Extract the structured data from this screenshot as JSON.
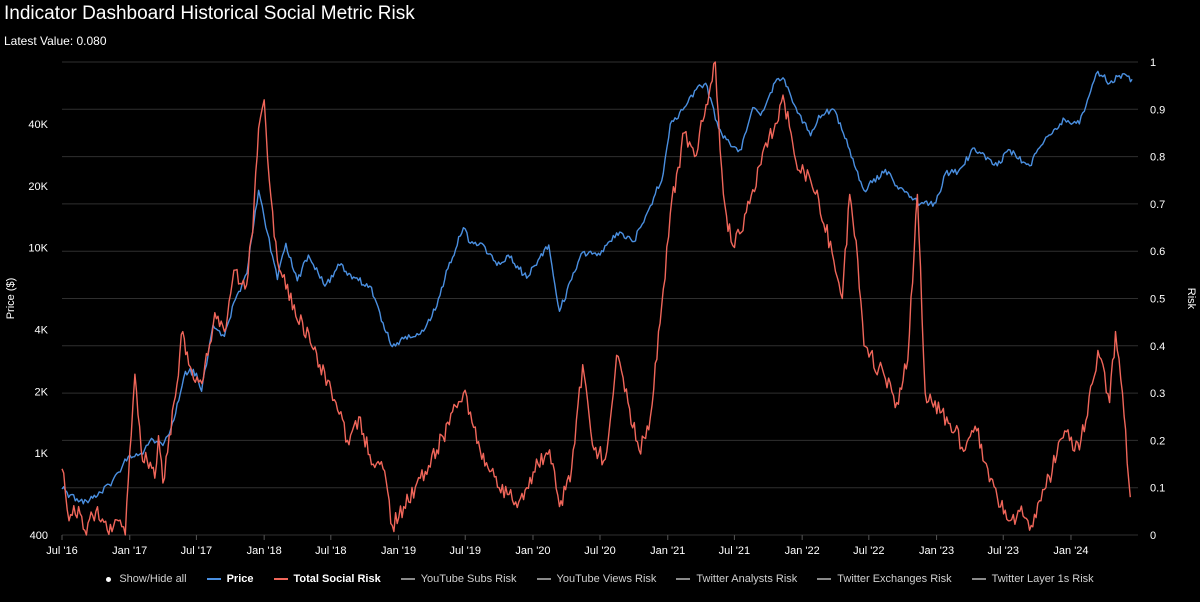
{
  "header": {
    "title": "Indicator Dashboard Historical Social Metric Risk",
    "subtitle": "Latest Value: 0.080"
  },
  "legend": {
    "show_hide_label": "Show/Hide all",
    "items": [
      {
        "label": "Price",
        "color": "#4a8fe0",
        "active": true
      },
      {
        "label": "Total Social Risk",
        "color": "#f0665a",
        "active": true
      },
      {
        "label": "YouTube Subs Risk",
        "color": "#8a8a8a",
        "active": false
      },
      {
        "label": "YouTube Views Risk",
        "color": "#8a8a8a",
        "active": false
      },
      {
        "label": "Twitter Analysts Risk",
        "color": "#8a8a8a",
        "active": false
      },
      {
        "label": "Twitter Exchanges Risk",
        "color": "#8a8a8a",
        "active": false
      },
      {
        "label": "Twitter Layer 1s Risk",
        "color": "#8a8a8a",
        "active": false
      }
    ]
  },
  "chart_data": {
    "type": "line",
    "title": "Indicator Dashboard Historical Social Metric Risk",
    "subtitle": "Latest Value: 0.080",
    "x_ticks": [
      "Jul '16",
      "Jan '17",
      "Jul '17",
      "Jan '18",
      "Jul '18",
      "Jan '19",
      "Jul '19",
      "Jan '20",
      "Jul '20",
      "Jan '21",
      "Jul '21",
      "Jan '22",
      "Jul '22",
      "Jan '23",
      "Jul '23",
      "Jan '24"
    ],
    "x_range": [
      "2016-07",
      "2024-07"
    ],
    "y_left": {
      "label": "Price ($)",
      "scale": "log",
      "ticks": [
        400,
        1000,
        2000,
        4000,
        10000,
        20000,
        40000
      ],
      "tick_labels": [
        "400",
        "1K",
        "2K",
        "4K",
        "10K",
        "20K",
        "40K"
      ],
      "range": [
        400,
        80000
      ]
    },
    "y_right": {
      "label": "Risk",
      "scale": "linear",
      "ticks": [
        0,
        0.1,
        0.2,
        0.3,
        0.4,
        0.5,
        0.6,
        0.7,
        0.8,
        0.9,
        1
      ],
      "tick_labels": [
        "0",
        "0.1",
        "0.2",
        "0.3",
        "0.4",
        "0.5",
        "0.6",
        "0.7",
        "0.8",
        "0.9",
        "1"
      ],
      "range": [
        0,
        1
      ]
    },
    "grid": true,
    "legend_position": "bottom",
    "series": [
      {
        "name": "Price",
        "axis": "left",
        "color": "#4a8fe0",
        "points": [
          [
            "2016-07-01",
            670
          ],
          [
            "2016-08-15",
            580
          ],
          [
            "2016-10-01",
            610
          ],
          [
            "2016-11-15",
            730
          ],
          [
            "2017-01-01",
            980
          ],
          [
            "2017-02-01",
            1000
          ],
          [
            "2017-03-01",
            1180
          ],
          [
            "2017-04-01",
            1090
          ],
          [
            "2017-05-01",
            1450
          ],
          [
            "2017-06-01",
            2500
          ],
          [
            "2017-07-01",
            2450
          ],
          [
            "2017-07-15",
            2000
          ],
          [
            "2017-08-15",
            4200
          ],
          [
            "2017-09-15",
            3700
          ],
          [
            "2017-10-15",
            5600
          ],
          [
            "2017-11-15",
            7500
          ],
          [
            "2017-12-17",
            19000
          ],
          [
            "2018-01-01",
            14000
          ],
          [
            "2018-02-06",
            7000
          ],
          [
            "2018-03-01",
            10500
          ],
          [
            "2018-04-01",
            6900
          ],
          [
            "2018-05-01",
            9200
          ],
          [
            "2018-06-15",
            6500
          ],
          [
            "2018-07-25",
            8200
          ],
          [
            "2018-09-01",
            7200
          ],
          [
            "2018-10-15",
            6500
          ],
          [
            "2018-11-20",
            4300
          ],
          [
            "2018-12-15",
            3300
          ],
          [
            "2019-01-15",
            3600
          ],
          [
            "2019-03-01",
            3800
          ],
          [
            "2019-04-15",
            5200
          ],
          [
            "2019-05-15",
            7900
          ],
          [
            "2019-06-26",
            12500
          ],
          [
            "2019-07-15",
            10500
          ],
          [
            "2019-08-15",
            10500
          ],
          [
            "2019-09-25",
            8200
          ],
          [
            "2019-10-26",
            9200
          ],
          [
            "2019-12-15",
            7100
          ],
          [
            "2020-01-15",
            8700
          ],
          [
            "2020-02-13",
            10300
          ],
          [
            "2020-03-13",
            4900
          ],
          [
            "2020-04-15",
            7000
          ],
          [
            "2020-05-15",
            9500
          ],
          [
            "2020-07-01",
            9200
          ],
          [
            "2020-08-15",
            11800
          ],
          [
            "2020-10-01",
            10700
          ],
          [
            "2020-11-15",
            16000
          ],
          [
            "2020-12-20",
            23000
          ],
          [
            "2021-01-08",
            40000
          ],
          [
            "2021-02-15",
            48000
          ],
          [
            "2021-03-15",
            58000
          ],
          [
            "2021-04-14",
            63000
          ],
          [
            "2021-05-19",
            38000
          ],
          [
            "2021-06-22",
            31000
          ],
          [
            "2021-07-20",
            30000
          ],
          [
            "2021-08-20",
            48000
          ],
          [
            "2021-09-10",
            44000
          ],
          [
            "2021-10-20",
            64000
          ],
          [
            "2021-11-10",
            67000
          ],
          [
            "2021-12-15",
            48000
          ],
          [
            "2022-01-24",
            35000
          ],
          [
            "2022-02-15",
            44000
          ],
          [
            "2022-03-28",
            47000
          ],
          [
            "2022-05-10",
            30000
          ],
          [
            "2022-06-18",
            19000
          ],
          [
            "2022-08-15",
            24000
          ],
          [
            "2022-09-15",
            20000
          ],
          [
            "2022-11-10",
            16500
          ],
          [
            "2022-12-30",
            16500
          ],
          [
            "2023-01-25",
            23000
          ],
          [
            "2023-03-01",
            23500
          ],
          [
            "2023-04-14",
            30500
          ],
          [
            "2023-06-15",
            25000
          ],
          [
            "2023-07-15",
            30000
          ],
          [
            "2023-09-11",
            25000
          ],
          [
            "2023-10-25",
            34500
          ],
          [
            "2023-12-15",
            42000
          ],
          [
            "2024-01-24",
            40000
          ],
          [
            "2024-02-28",
            62000
          ],
          [
            "2024-03-14",
            72000
          ],
          [
            "2024-04-15",
            63000
          ],
          [
            "2024-05-20",
            70000
          ],
          [
            "2024-06-15",
            66000
          ]
        ]
      },
      {
        "name": "Total Social Risk",
        "axis": "right",
        "color": "#f0665a",
        "points": [
          [
            "2016-07-01",
            0.14
          ],
          [
            "2016-07-20",
            0.03
          ],
          [
            "2016-08-15",
            0.06
          ],
          [
            "2016-09-01",
            0.01
          ],
          [
            "2016-10-01",
            0.05
          ],
          [
            "2016-11-01",
            0.01
          ],
          [
            "2016-12-01",
            0.03
          ],
          [
            "2016-12-20",
            0.0
          ],
          [
            "2017-01-05",
            0.21
          ],
          [
            "2017-01-15",
            0.34
          ],
          [
            "2017-02-01",
            0.18
          ],
          [
            "2017-03-10",
            0.12
          ],
          [
            "2017-03-20",
            0.21
          ],
          [
            "2017-04-01",
            0.11
          ],
          [
            "2017-05-01",
            0.28
          ],
          [
            "2017-05-25",
            0.43
          ],
          [
            "2017-06-10",
            0.36
          ],
          [
            "2017-07-16",
            0.32
          ],
          [
            "2017-08-01",
            0.38
          ],
          [
            "2017-08-20",
            0.47
          ],
          [
            "2017-09-15",
            0.43
          ],
          [
            "2017-10-15",
            0.56
          ],
          [
            "2017-11-10",
            0.52
          ],
          [
            "2017-12-01",
            0.64
          ],
          [
            "2017-12-17",
            0.86
          ],
          [
            "2018-01-01",
            0.92
          ],
          [
            "2018-01-15",
            0.75
          ],
          [
            "2018-02-06",
            0.58
          ],
          [
            "2018-03-01",
            0.52
          ],
          [
            "2018-04-15",
            0.45
          ],
          [
            "2018-06-01",
            0.36
          ],
          [
            "2018-07-15",
            0.28
          ],
          [
            "2018-08-15",
            0.2
          ],
          [
            "2018-09-15",
            0.25
          ],
          [
            "2018-10-15",
            0.17
          ],
          [
            "2018-11-20",
            0.14
          ],
          [
            "2018-12-15",
            0.02
          ],
          [
            "2019-01-15",
            0.06
          ],
          [
            "2019-03-01",
            0.12
          ],
          [
            "2019-04-15",
            0.18
          ],
          [
            "2019-06-26",
            0.3
          ],
          [
            "2019-07-15",
            0.26
          ],
          [
            "2019-08-15",
            0.16
          ],
          [
            "2019-10-01",
            0.1
          ],
          [
            "2019-11-15",
            0.07
          ],
          [
            "2019-12-15",
            0.1
          ],
          [
            "2020-01-15",
            0.15
          ],
          [
            "2020-02-15",
            0.18
          ],
          [
            "2020-03-13",
            0.06
          ],
          [
            "2020-04-15",
            0.14
          ],
          [
            "2020-05-15",
            0.36
          ],
          [
            "2020-06-15",
            0.18
          ],
          [
            "2020-07-15",
            0.16
          ],
          [
            "2020-08-15",
            0.38
          ],
          [
            "2020-09-15",
            0.28
          ],
          [
            "2020-10-15",
            0.18
          ],
          [
            "2020-11-15",
            0.25
          ],
          [
            "2020-12-20",
            0.52
          ],
          [
            "2021-01-08",
            0.68
          ],
          [
            "2021-02-15",
            0.85
          ],
          [
            "2021-03-15",
            0.8
          ],
          [
            "2021-04-15",
            0.91
          ],
          [
            "2021-05-10",
            1.0
          ],
          [
            "2021-06-01",
            0.72
          ],
          [
            "2021-06-22",
            0.62
          ],
          [
            "2021-07-20",
            0.64
          ],
          [
            "2021-08-20",
            0.73
          ],
          [
            "2021-09-20",
            0.82
          ],
          [
            "2021-10-20",
            0.87
          ],
          [
            "2021-11-10",
            0.93
          ],
          [
            "2021-12-15",
            0.79
          ],
          [
            "2022-01-24",
            0.75
          ],
          [
            "2022-02-15",
            0.71
          ],
          [
            "2022-03-28",
            0.58
          ],
          [
            "2022-04-20",
            0.5
          ],
          [
            "2022-05-10",
            0.72
          ],
          [
            "2022-06-01",
            0.58
          ],
          [
            "2022-06-18",
            0.4
          ],
          [
            "2022-08-15",
            0.33
          ],
          [
            "2022-09-15",
            0.28
          ],
          [
            "2022-10-15",
            0.37
          ],
          [
            "2022-11-10",
            0.72
          ],
          [
            "2022-12-01",
            0.3
          ],
          [
            "2023-01-15",
            0.26
          ],
          [
            "2023-02-20",
            0.22
          ],
          [
            "2023-03-20",
            0.18
          ],
          [
            "2023-04-20",
            0.22
          ],
          [
            "2023-05-20",
            0.14
          ],
          [
            "2023-06-15",
            0.08
          ],
          [
            "2023-07-15",
            0.03
          ],
          [
            "2023-08-15",
            0.05
          ],
          [
            "2023-09-15",
            0.02
          ],
          [
            "2023-10-25",
            0.1
          ],
          [
            "2023-12-15",
            0.22
          ],
          [
            "2024-01-24",
            0.18
          ],
          [
            "2024-02-28",
            0.32
          ],
          [
            "2024-03-14",
            0.39
          ],
          [
            "2024-04-15",
            0.28
          ],
          [
            "2024-05-01",
            0.43
          ],
          [
            "2024-05-20",
            0.3
          ],
          [
            "2024-06-10",
            0.08
          ]
        ]
      }
    ]
  }
}
